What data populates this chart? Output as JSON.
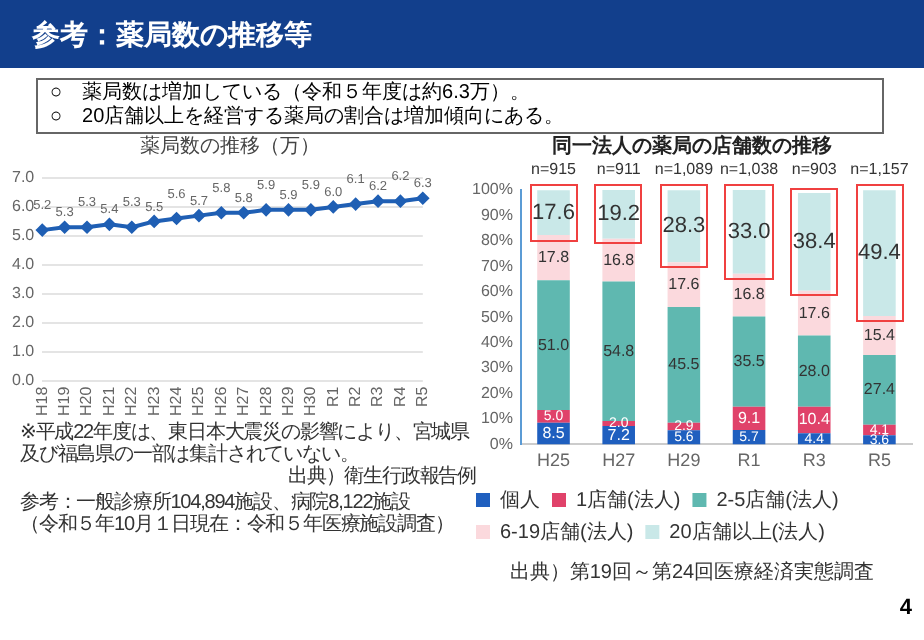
{
  "chart_data": [
    {
      "type": "line",
      "title": "薬局数の推移（万）",
      "categories": [
        "H18",
        "H19",
        "H20",
        "H21",
        "H22",
        "H23",
        "H24",
        "H25",
        "H26",
        "H27",
        "H28",
        "H29",
        "H30",
        "R1",
        "R2",
        "R3",
        "R4",
        "R5"
      ],
      "series": [
        {
          "color": "#1f5fb4",
          "values": [
            5.2,
            5.3,
            5.3,
            5.4,
            5.3,
            5.5,
            5.6,
            5.7,
            5.8,
            5.8,
            5.9,
            5.9,
            5.9,
            6.0,
            6.1,
            6.2,
            6.2,
            6.3
          ],
          "value_labels": [
            "5.2",
            "5.3",
            "5.3",
            "5.4",
            "5.3",
            "5.5",
            "5.6",
            "5.7",
            "5.8",
            "5.8",
            "5.9",
            "5.9",
            "5.9",
            "6.0",
            "6.1",
            "6.2",
            "6.2",
            "6.3"
          ]
        }
      ],
      "ylim": [
        0,
        7
      ],
      "yticks": [
        {
          "value": 0,
          "label": "0.0"
        },
        {
          "value": 1,
          "label": "1.0"
        },
        {
          "value": 2,
          "label": "2.0"
        },
        {
          "value": 3,
          "label": "3.0"
        },
        {
          "value": 4,
          "label": "4.0"
        },
        {
          "value": 5,
          "label": "5.0"
        },
        {
          "value": 6,
          "label": "6.0"
        },
        {
          "value": 7,
          "label": "7.0"
        }
      ],
      "grid": "y",
      "marker": "diamond",
      "line_style": "solid",
      "legend": false,
      "annotations": [
        "参考：薬局数の推移等",
        "○　薬局数は増加している（令和５年度は約6.3万）。",
        "○　20店舗以上を経営する薬局の割合は増加傾向にある。",
        "※平成22年度は、東日本大震災の影響により、宮城県及び福島県の一部は集計されていない。",
        "出典）衛生行政報告例",
        "参考：一般診療所104,894施設、病院8,122施設",
        "（令和５年10月１日現在：令和５年医療施設調査）"
      ]
    },
    {
      "type": "bar",
      "title": "同一法人の薬局の店舗数の推移",
      "categories": [
        "H25",
        "H27",
        "H29",
        "R1",
        "R3",
        "R5"
      ],
      "stacked": true,
      "series": [
        {
          "name": "個人",
          "color": "#1f5fbf",
          "values": [
            8.5,
            7.2,
            5.6,
            5.7,
            4.4,
            3.6
          ],
          "value_labels": [
            "8.5",
            "7.2",
            "5.6",
            "5.7",
            "4.4",
            "3.6"
          ]
        },
        {
          "name": "1店舗(法人)",
          "color": "#e0426a",
          "values": [
            5.0,
            2.0,
            2.9,
            9.1,
            10.4,
            4.1
          ],
          "value_labels": [
            "5.0",
            "2.0",
            "2.9",
            "9.1",
            "10.4",
            "4.1"
          ]
        },
        {
          "name": "2-5店舗(法人)",
          "color": "#5fb8b0",
          "values": [
            51.0,
            54.8,
            45.5,
            35.5,
            28.0,
            27.4
          ],
          "value_labels": [
            "51.0",
            "54.8",
            "45.5",
            "35.5",
            "28.0",
            "27.4"
          ]
        },
        {
          "name": "6-19店舗(法人)",
          "color": "#fbd9dd",
          "values": [
            17.8,
            16.8,
            17.6,
            16.8,
            17.6,
            15.4
          ],
          "value_labels": [
            "17.8",
            "16.8",
            "17.6",
            "16.8",
            "17.6",
            "15.4"
          ]
        },
        {
          "name": "20店舗以上(法人)",
          "color": "#c9e8e8",
          "values": [
            17.6,
            19.2,
            28.3,
            33.0,
            38.4,
            49.4
          ],
          "value_labels": [
            "17.6",
            "19.2",
            "28.3",
            "33.0",
            "38.4",
            "49.4"
          ]
        }
      ],
      "ylim": [
        0,
        100
      ],
      "yticks": [
        {
          "value": 0,
          "label": "0%"
        },
        {
          "value": 10,
          "label": "10%"
        },
        {
          "value": 20,
          "label": "20%"
        },
        {
          "value": 30,
          "label": "30%"
        },
        {
          "value": 40,
          "label": "40%"
        },
        {
          "value": 50,
          "label": "50%"
        },
        {
          "value": 60,
          "label": "60%"
        },
        {
          "value": 70,
          "label": "70%"
        },
        {
          "value": 80,
          "label": "80%"
        },
        {
          "value": 90,
          "label": "90%"
        },
        {
          "value": 100,
          "label": "100%"
        }
      ],
      "grid": false,
      "legend": "bottom",
      "annotations": [
        {
          "text": "n=915",
          "x": "H25",
          "y": 100
        },
        {
          "text": "n=911",
          "x": "H27",
          "y": 100
        },
        {
          "text": "n=1,089",
          "x": "H29",
          "y": 100
        },
        {
          "text": "n=1,038",
          "x": "R1",
          "y": 100
        },
        {
          "text": "n=903",
          "x": "R3",
          "y": 100
        },
        {
          "text": "n=1,157",
          "x": "R5",
          "y": 100
        },
        "出典）第19回～第24回医療経済実態調査",
        "4"
      ]
    }
  ]
}
